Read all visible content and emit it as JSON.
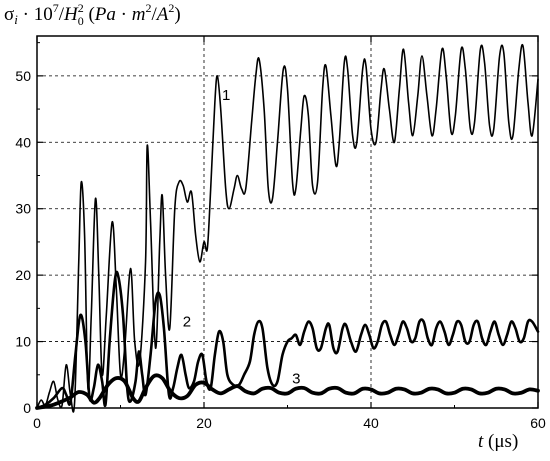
{
  "chart_data": {
    "type": "line",
    "ylabel": "σ_i · 10^7 / H_0^2  (Pa · m^2 / A^2)",
    "xlabel": "t  (μs)",
    "xlim": [
      0,
      60
    ],
    "ylim": [
      0,
      56
    ],
    "x_ticks": [
      0,
      20,
      40,
      60
    ],
    "y_ticks": [
      0,
      10,
      20,
      30,
      40,
      50
    ],
    "grid": "dashed at x = 20, 40 and y = 10 … 50",
    "colors": {
      "lines": "#000000",
      "grid": "#000000"
    },
    "series": [
      {
        "name": "1",
        "points": [
          [
            0,
            0
          ],
          [
            0.5,
            1.2
          ],
          [
            1,
            0.4
          ],
          [
            1.5,
            2.4
          ],
          [
            2,
            4.0
          ],
          [
            2.5,
            1.2
          ],
          [
            3,
            0.4
          ],
          [
            3.5,
            6.5
          ],
          [
            4,
            2.0
          ],
          [
            4.5,
            0.8
          ],
          [
            5,
            22.0
          ],
          [
            5.3,
            34.0
          ],
          [
            5.7,
            26.0
          ],
          [
            6.1,
            3.0
          ],
          [
            6.5,
            14.0
          ],
          [
            7.0,
            31.5
          ],
          [
            7.4,
            20.0
          ],
          [
            7.8,
            5.0
          ],
          [
            8.3,
            14.0
          ],
          [
            9.0,
            28.0
          ],
          [
            9.5,
            18.0
          ],
          [
            10.0,
            5.0
          ],
          [
            10.5,
            9.0
          ],
          [
            11.2,
            21.0
          ],
          [
            11.7,
            10.0
          ],
          [
            12.3,
            7.0
          ],
          [
            13.0,
            22.0
          ],
          [
            13.2,
            39.5
          ],
          [
            13.6,
            28.0
          ],
          [
            14.2,
            9.0
          ],
          [
            14.7,
            25.0
          ],
          [
            15.0,
            32.0
          ],
          [
            15.4,
            20.0
          ],
          [
            15.9,
            12.0
          ],
          [
            16.5,
            30.0
          ],
          [
            17.0,
            34.0
          ],
          [
            17.5,
            33.5
          ],
          [
            18.0,
            31.0
          ],
          [
            18.5,
            32.5
          ],
          [
            19.0,
            26.0
          ],
          [
            19.5,
            22.0
          ],
          [
            20.0,
            25.0
          ],
          [
            20.4,
            24.0
          ],
          [
            20.8,
            33.0
          ],
          [
            21.3,
            46.0
          ],
          [
            21.6,
            50.0
          ],
          [
            22.0,
            45.0
          ],
          [
            22.6,
            33.0
          ],
          [
            23.0,
            30.0
          ],
          [
            23.6,
            33.0
          ],
          [
            24.0,
            35.0
          ],
          [
            24.5,
            33.0
          ],
          [
            25.0,
            33.0
          ],
          [
            25.7,
            43.0
          ],
          [
            26.2,
            50.0
          ],
          [
            26.6,
            52.5
          ],
          [
            27.2,
            45.0
          ],
          [
            27.7,
            33.0
          ],
          [
            28.2,
            31.5
          ],
          [
            28.8,
            40.0
          ],
          [
            29.5,
            51.0
          ],
          [
            30.0,
            48.0
          ],
          [
            30.6,
            34.0
          ],
          [
            31.0,
            33.0
          ],
          [
            31.6,
            42.0
          ],
          [
            32.0,
            47.0
          ],
          [
            32.5,
            44.0
          ],
          [
            33.0,
            33.5
          ],
          [
            33.6,
            34.0
          ],
          [
            34.2,
            48.0
          ],
          [
            34.6,
            51.5
          ],
          [
            35.2,
            44.0
          ],
          [
            35.8,
            36.5
          ],
          [
            36.2,
            40.0
          ],
          [
            36.8,
            52.0
          ],
          [
            37.2,
            51.0
          ],
          [
            37.8,
            41.0
          ],
          [
            38.3,
            40.0
          ],
          [
            39.0,
            51.0
          ],
          [
            39.4,
            51.5
          ],
          [
            40.0,
            42.0
          ],
          [
            40.6,
            40.0
          ],
          [
            41.2,
            48.0
          ],
          [
            41.6,
            51.0
          ],
          [
            42.2,
            45.0
          ],
          [
            42.8,
            40.0
          ],
          [
            43.4,
            48.0
          ],
          [
            43.9,
            54.0
          ],
          [
            44.5,
            46.0
          ],
          [
            45.0,
            41.0
          ],
          [
            45.6,
            47.0
          ],
          [
            46.1,
            53.0
          ],
          [
            46.7,
            47.0
          ],
          [
            47.3,
            41.0
          ],
          [
            47.8,
            45.0
          ],
          [
            48.5,
            54.0
          ],
          [
            49.0,
            50.0
          ],
          [
            49.6,
            41.5
          ],
          [
            50.1,
            44.0
          ],
          [
            50.8,
            54.0
          ],
          [
            51.3,
            51.0
          ],
          [
            51.9,
            42.0
          ],
          [
            52.4,
            43.0
          ],
          [
            53.1,
            54.0
          ],
          [
            53.6,
            52.0
          ],
          [
            54.2,
            42.5
          ],
          [
            54.7,
            42.0
          ],
          [
            55.4,
            53.0
          ],
          [
            55.9,
            53.5
          ],
          [
            56.5,
            43.0
          ],
          [
            57.0,
            41.0
          ],
          [
            57.7,
            51.0
          ],
          [
            58.2,
            54.5
          ],
          [
            58.8,
            46.0
          ],
          [
            59.3,
            41.0
          ],
          [
            60.0,
            49.5
          ]
        ]
      },
      {
        "name": "2",
        "points": [
          [
            0,
            0
          ],
          [
            1,
            0.5
          ],
          [
            2,
            1.5
          ],
          [
            3,
            3.0
          ],
          [
            3.5,
            2.0
          ],
          [
            4,
            0.8
          ],
          [
            4.6,
            8.0
          ],
          [
            5.2,
            14.0
          ],
          [
            5.8,
            10.0
          ],
          [
            6.3,
            1.5
          ],
          [
            6.8,
            3.0
          ],
          [
            7.3,
            6.5
          ],
          [
            7.8,
            4.0
          ],
          [
            8.2,
            0.5
          ],
          [
            8.7,
            10.0
          ],
          [
            9.3,
            19.0
          ],
          [
            9.7,
            20.0
          ],
          [
            10.3,
            14.0
          ],
          [
            10.8,
            3.0
          ],
          [
            11.2,
            1.0
          ],
          [
            11.8,
            4.0
          ],
          [
            12.2,
            8.5
          ],
          [
            12.6,
            5.0
          ],
          [
            13.0,
            2.0
          ],
          [
            13.6,
            8.0
          ],
          [
            14.2,
            16.0
          ],
          [
            14.7,
            17.0
          ],
          [
            15.2,
            12.0
          ],
          [
            15.8,
            2.0
          ],
          [
            16.3,
            3.0
          ],
          [
            16.8,
            6.0
          ],
          [
            17.3,
            8.0
          ],
          [
            17.8,
            5.0
          ],
          [
            18.2,
            3.0
          ],
          [
            18.8,
            4.0
          ],
          [
            19.3,
            7.0
          ],
          [
            19.8,
            8.0
          ],
          [
            20.3,
            4.0
          ],
          [
            20.8,
            3.0
          ],
          [
            21.3,
            8.0
          ],
          [
            21.8,
            11.5
          ],
          [
            22.3,
            10.0
          ],
          [
            22.8,
            5.0
          ],
          [
            23.5,
            3.5
          ],
          [
            24.2,
            3.5
          ],
          [
            24.8,
            5.0
          ],
          [
            25.5,
            7.0
          ],
          [
            26.0,
            11.0
          ],
          [
            26.5,
            13.0
          ],
          [
            27.0,
            12.0
          ],
          [
            27.6,
            6.0
          ],
          [
            28.2,
            3.5
          ],
          [
            28.8,
            4.0
          ],
          [
            29.4,
            8.0
          ],
          [
            30.0,
            10.0
          ],
          [
            30.5,
            10.5
          ],
          [
            31.0,
            11.0
          ],
          [
            31.5,
            9.5
          ],
          [
            32.0,
            11.5
          ],
          [
            32.5,
            13.0
          ],
          [
            33.0,
            12.0
          ],
          [
            33.5,
            9.0
          ],
          [
            34.0,
            9.0
          ],
          [
            34.6,
            12.0
          ],
          [
            35.0,
            12.5
          ],
          [
            35.5,
            9.0
          ],
          [
            36.0,
            8.5
          ],
          [
            36.6,
            12.0
          ],
          [
            37.0,
            12.5
          ],
          [
            37.6,
            10.0
          ],
          [
            38.2,
            8.5
          ],
          [
            38.8,
            11.0
          ],
          [
            39.3,
            12.5
          ],
          [
            39.8,
            11.0
          ],
          [
            40.3,
            9.0
          ],
          [
            40.8,
            10.0
          ],
          [
            41.3,
            12.5
          ],
          [
            41.8,
            13.0
          ],
          [
            42.3,
            11.0
          ],
          [
            42.8,
            9.5
          ],
          [
            43.3,
            11.0
          ],
          [
            43.8,
            13.0
          ],
          [
            44.3,
            12.0
          ],
          [
            44.8,
            10.0
          ],
          [
            45.3,
            10.5
          ],
          [
            45.8,
            13.0
          ],
          [
            46.3,
            13.0
          ],
          [
            46.8,
            10.5
          ],
          [
            47.3,
            9.5
          ],
          [
            47.8,
            12.0
          ],
          [
            48.3,
            13.0
          ],
          [
            48.8,
            11.5
          ],
          [
            49.3,
            9.5
          ],
          [
            49.8,
            11.0
          ],
          [
            50.3,
            13.0
          ],
          [
            50.8,
            12.5
          ],
          [
            51.3,
            10.0
          ],
          [
            51.8,
            10.0
          ],
          [
            52.3,
            12.5
          ],
          [
            52.8,
            13.0
          ],
          [
            53.3,
            10.5
          ],
          [
            53.8,
            9.5
          ],
          [
            54.3,
            11.5
          ],
          [
            54.8,
            13.0
          ],
          [
            55.3,
            11.0
          ],
          [
            55.8,
            9.5
          ],
          [
            56.3,
            11.0
          ],
          [
            56.8,
            13.0
          ],
          [
            57.3,
            12.0
          ],
          [
            57.8,
            10.0
          ],
          [
            58.3,
            10.5
          ],
          [
            58.8,
            13.0
          ],
          [
            59.3,
            13.0
          ],
          [
            60.0,
            11.5
          ]
        ]
      },
      {
        "name": "3",
        "points": [
          [
            0,
            0
          ],
          [
            1,
            0.2
          ],
          [
            2,
            0.5
          ],
          [
            3,
            1.0
          ],
          [
            4,
            1.6
          ],
          [
            5,
            2.4
          ],
          [
            6,
            2.0
          ],
          [
            6.8,
            0.8
          ],
          [
            7.5,
            1.5
          ],
          [
            8.5,
            3.5
          ],
          [
            9.5,
            4.5
          ],
          [
            10.5,
            4.0
          ],
          [
            11.5,
            1.5
          ],
          [
            12.2,
            1.0
          ],
          [
            13,
            3.0
          ],
          [
            14,
            4.8
          ],
          [
            15,
            4.5
          ],
          [
            16,
            2.5
          ],
          [
            17,
            1.5
          ],
          [
            18,
            1.8
          ],
          [
            19,
            3.5
          ],
          [
            20,
            3.8
          ],
          [
            21,
            2.8
          ],
          [
            22,
            2.2
          ],
          [
            23,
            2.8
          ],
          [
            24,
            3.3
          ],
          [
            25,
            2.5
          ],
          [
            26,
            2.2
          ],
          [
            27,
            2.9
          ],
          [
            28,
            3.0
          ],
          [
            29,
            2.3
          ],
          [
            30,
            2.2
          ],
          [
            31,
            2.9
          ],
          [
            32,
            3.0
          ],
          [
            33,
            2.3
          ],
          [
            34,
            2.2
          ],
          [
            35,
            2.9
          ],
          [
            36,
            3.0
          ],
          [
            37,
            2.3
          ],
          [
            38,
            2.2
          ],
          [
            39,
            2.9
          ],
          [
            40,
            2.8
          ],
          [
            41,
            2.2
          ],
          [
            42,
            2.3
          ],
          [
            43,
            2.9
          ],
          [
            44,
            2.8
          ],
          [
            45,
            2.2
          ],
          [
            46,
            2.3
          ],
          [
            47,
            2.9
          ],
          [
            48,
            2.8
          ],
          [
            49,
            2.2
          ],
          [
            50,
            2.3
          ],
          [
            51,
            2.9
          ],
          [
            52,
            2.8
          ],
          [
            53,
            2.2
          ],
          [
            54,
            2.3
          ],
          [
            55,
            2.9
          ],
          [
            56,
            2.8
          ],
          [
            57,
            2.2
          ],
          [
            58,
            2.3
          ],
          [
            59,
            2.8
          ],
          [
            60,
            2.6
          ]
        ]
      }
    ]
  }
}
